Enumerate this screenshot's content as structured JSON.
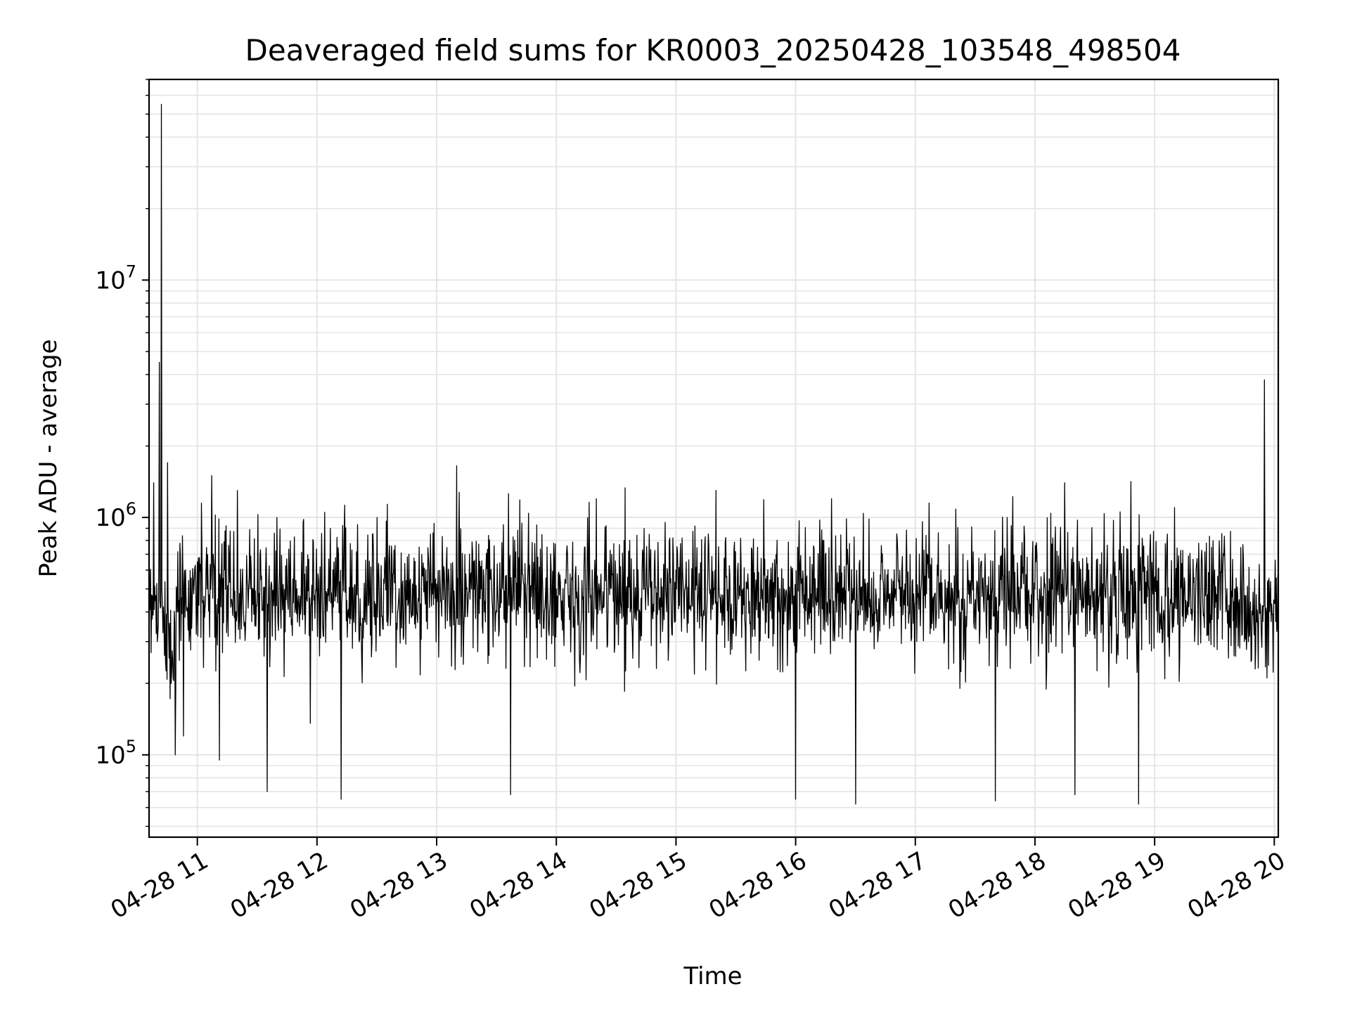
{
  "chart_data": {
    "type": "line",
    "title": "Deaveraged field sums for KR0003_20250428_103548_498504",
    "xlabel": "Time",
    "ylabel": "Peak ADU - average",
    "x_axis": {
      "kind": "time",
      "range": [
        "2025-04-28 10:35:48",
        "2025-04-28 20:02:00"
      ],
      "ticks": [
        "2025-04-28 11:00",
        "2025-04-28 12:00",
        "2025-04-28 13:00",
        "2025-04-28 14:00",
        "2025-04-28 15:00",
        "2025-04-28 16:00",
        "2025-04-28 17:00",
        "2025-04-28 18:00",
        "2025-04-28 19:00",
        "2025-04-28 20:00"
      ],
      "tick_labels": [
        "04-28 11",
        "04-28 12",
        "04-28 13",
        "04-28 14",
        "04-28 15",
        "04-28 16",
        "04-28 17",
        "04-28 18",
        "04-28 19",
        "04-28 20"
      ]
    },
    "y_axis": {
      "scale": "log",
      "range": [
        45000,
        70000000
      ],
      "ticks": [
        100000,
        1000000,
        10000000
      ],
      "tick_labels": [
        {
          "base": "10",
          "exp": "5"
        },
        {
          "base": "10",
          "exp": "6"
        },
        {
          "base": "10",
          "exp": "7"
        }
      ]
    },
    "grid": true,
    "legend": "none",
    "line_color": "#000000",
    "grid_color": "#e5e5e5",
    "series": [
      {
        "x": [
          "2025-04-28 10:36",
          "2025-04-28 10:38",
          "2025-04-28 10:40",
          "2025-04-28 10:41",
          "2025-04-28 10:42",
          "2025-04-28 10:43",
          "2025-04-28 10:44",
          "2025-04-28 10:45",
          "2025-04-28 10:47",
          "2025-04-28 10:49",
          "2025-04-28 10:51",
          "2025-04-28 10:53",
          "2025-04-28 10:56",
          "2025-04-28 10:58",
          "2025-04-28 11:00",
          "2025-04-28 11:02",
          "2025-04-28 11:05",
          "2025-04-28 11:08",
          "2025-04-28 11:11",
          "2025-04-28 11:15",
          "2025-04-28 11:20",
          "2025-04-28 11:27",
          "2025-04-28 11:35",
          "2025-04-28 11:40",
          "2025-04-28 11:50",
          "2025-04-28 12:12",
          "2025-04-28 12:30",
          "2025-04-28 12:45",
          "2025-04-28 13:03",
          "2025-04-28 13:10",
          "2025-04-28 13:30",
          "2025-04-28 13:37",
          "2025-04-28 14:00",
          "2025-04-28 14:20",
          "2025-04-28 14:40",
          "2025-04-28 15:00",
          "2025-04-28 15:20",
          "2025-04-28 15:40",
          "2025-04-28 16:00",
          "2025-04-28 16:18",
          "2025-04-28 16:30",
          "2025-04-28 16:50",
          "2025-04-28 17:07",
          "2025-04-28 17:20",
          "2025-04-28 17:40",
          "2025-04-28 17:46",
          "2025-04-28 18:00",
          "2025-04-28 18:15",
          "2025-04-28 18:20",
          "2025-04-28 18:40",
          "2025-04-28 18:52",
          "2025-04-28 19:00",
          "2025-04-28 19:10",
          "2025-04-28 19:20",
          "2025-04-28 19:30",
          "2025-04-28 19:40",
          "2025-04-28 19:45",
          "2025-04-28 19:50",
          "2025-04-28 19:55",
          "2025-04-28 19:58",
          "2025-04-28 20:02"
        ],
        "y": [
          450000,
          1400000,
          300000,
          4500000,
          55000000,
          420000,
          250000,
          1700000,
          200000,
          100000,
          250000,
          120000,
          300000,
          550000,
          650000,
          1150000,
          500000,
          700000,
          95000,
          400000,
          1300000,
          600000,
          70000,
          1000000,
          500000,
          65000,
          1000000,
          450000,
          600000,
          1650000,
          400000,
          68000,
          500000,
          1200000,
          400000,
          600000,
          1300000,
          480000,
          65000,
          1200000,
          62000,
          500000,
          1150000,
          350000,
          64000,
          1000000,
          500000,
          1400000,
          68000,
          650000,
          62000,
          550000,
          1100000,
          300000,
          600000,
          500000,
          300000,
          320000,
          3800000,
          450000,
          600000
        ]
      }
    ]
  }
}
